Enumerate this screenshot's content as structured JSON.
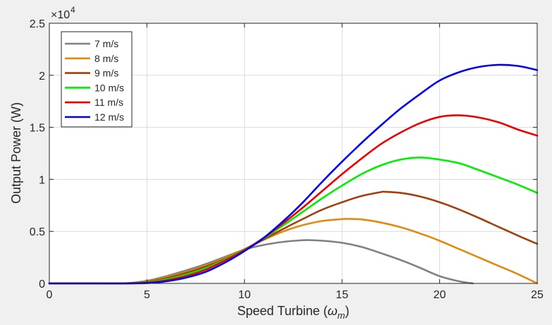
{
  "chart_data": {
    "type": "line",
    "title": "",
    "xlabel_main": "Speed Turbine (",
    "xlabel_symbol": "ω",
    "xlabel_subscript": "m",
    "xlabel_close": ")",
    "ylabel": "Output Power (W)",
    "xlim": [
      0,
      25
    ],
    "ylim": [
      0,
      25000
    ],
    "x_ticks": [
      0,
      5,
      10,
      15,
      20,
      25
    ],
    "x_tick_labels": [
      "0",
      "5",
      "10",
      "15",
      "20",
      "25"
    ],
    "y_ticks": [
      0,
      5000,
      10000,
      15000,
      20000,
      25000
    ],
    "y_tick_labels": [
      "0",
      "0.5",
      "1",
      "1.5",
      "2",
      "2.5"
    ],
    "y_exponent_base": "×10",
    "y_exponent_power": "4",
    "grid": true,
    "legend_position": "top-left",
    "series": [
      {
        "name": "7 m/s",
        "color": "#808080",
        "x": [
          0,
          2.5,
          4,
          5,
          6,
          7,
          8,
          9,
          10,
          11,
          12,
          13,
          13.3,
          14,
          15,
          16,
          17,
          18,
          19,
          20,
          21,
          21.7
        ],
        "y": [
          0,
          0,
          20,
          250,
          700,
          1250,
          1850,
          2550,
          3250,
          3700,
          4000,
          4150,
          4160,
          4100,
          3900,
          3500,
          2900,
          2250,
          1500,
          700,
          200,
          0
        ]
      },
      {
        "name": "8 m/s",
        "color": "#e08a0e",
        "x": [
          0,
          2.5,
          4,
          5,
          6,
          7,
          8,
          9,
          10,
          11,
          12,
          13,
          14,
          15,
          15.3,
          16,
          17,
          18,
          19,
          20,
          21,
          22,
          23,
          24,
          25
        ],
        "y": [
          0,
          0,
          20,
          200,
          600,
          1100,
          1700,
          2450,
          3300,
          4200,
          5000,
          5600,
          6000,
          6180,
          6200,
          6150,
          5850,
          5400,
          4800,
          4100,
          3300,
          2500,
          1700,
          900,
          0
        ]
      },
      {
        "name": "9 m/s",
        "color": "#a0400a",
        "x": [
          0,
          2.5,
          4,
          5,
          6,
          7,
          8,
          9,
          10,
          11,
          12,
          13,
          14,
          15,
          16,
          17,
          17.2,
          18,
          19,
          20,
          21,
          22,
          23,
          24,
          25
        ],
        "y": [
          0,
          0,
          15,
          150,
          500,
          1000,
          1600,
          2350,
          3250,
          4250,
          5250,
          6200,
          7100,
          7800,
          8400,
          8780,
          8800,
          8700,
          8350,
          7800,
          7100,
          6300,
          5450,
          4600,
          3800
        ]
      },
      {
        "name": "10 m/s",
        "color": "#00ee00",
        "x": [
          0,
          2.5,
          4,
          5,
          6,
          7,
          8,
          9,
          10,
          11,
          12,
          13,
          14,
          15,
          16,
          17,
          18,
          19,
          20,
          21,
          22,
          23,
          24,
          25
        ],
        "y": [
          0,
          0,
          10,
          100,
          400,
          850,
          1450,
          2300,
          3250,
          4350,
          5600,
          6900,
          8200,
          9400,
          10500,
          11350,
          11900,
          12100,
          11900,
          11550,
          10900,
          10200,
          9500,
          8700
        ]
      },
      {
        "name": "11 m/s",
        "color": "#ee0000",
        "x": [
          0,
          2.5,
          4,
          5,
          6,
          7,
          8,
          9,
          10,
          11,
          12,
          13,
          14,
          15,
          16,
          17,
          18,
          19,
          20,
          21,
          22,
          23,
          24,
          25
        ],
        "y": [
          0,
          0,
          5,
          60,
          300,
          700,
          1300,
          2200,
          3200,
          4400,
          5800,
          7300,
          8900,
          10500,
          12000,
          13400,
          14500,
          15400,
          16000,
          16150,
          15950,
          15500,
          14800,
          14200
        ]
      },
      {
        "name": "12 m/s",
        "color": "#0000ee",
        "x": [
          0,
          2.5,
          4,
          5,
          6,
          7,
          8,
          9,
          10,
          11,
          12,
          13,
          14,
          15,
          16,
          17,
          18,
          19,
          20,
          21,
          22,
          23,
          24,
          25
        ],
        "y": [
          0,
          0,
          2,
          30,
          200,
          550,
          1100,
          2000,
          3100,
          4400,
          6000,
          7800,
          9800,
          11700,
          13500,
          15200,
          16800,
          18200,
          19500,
          20300,
          20800,
          21000,
          20900,
          20500
        ]
      }
    ]
  }
}
